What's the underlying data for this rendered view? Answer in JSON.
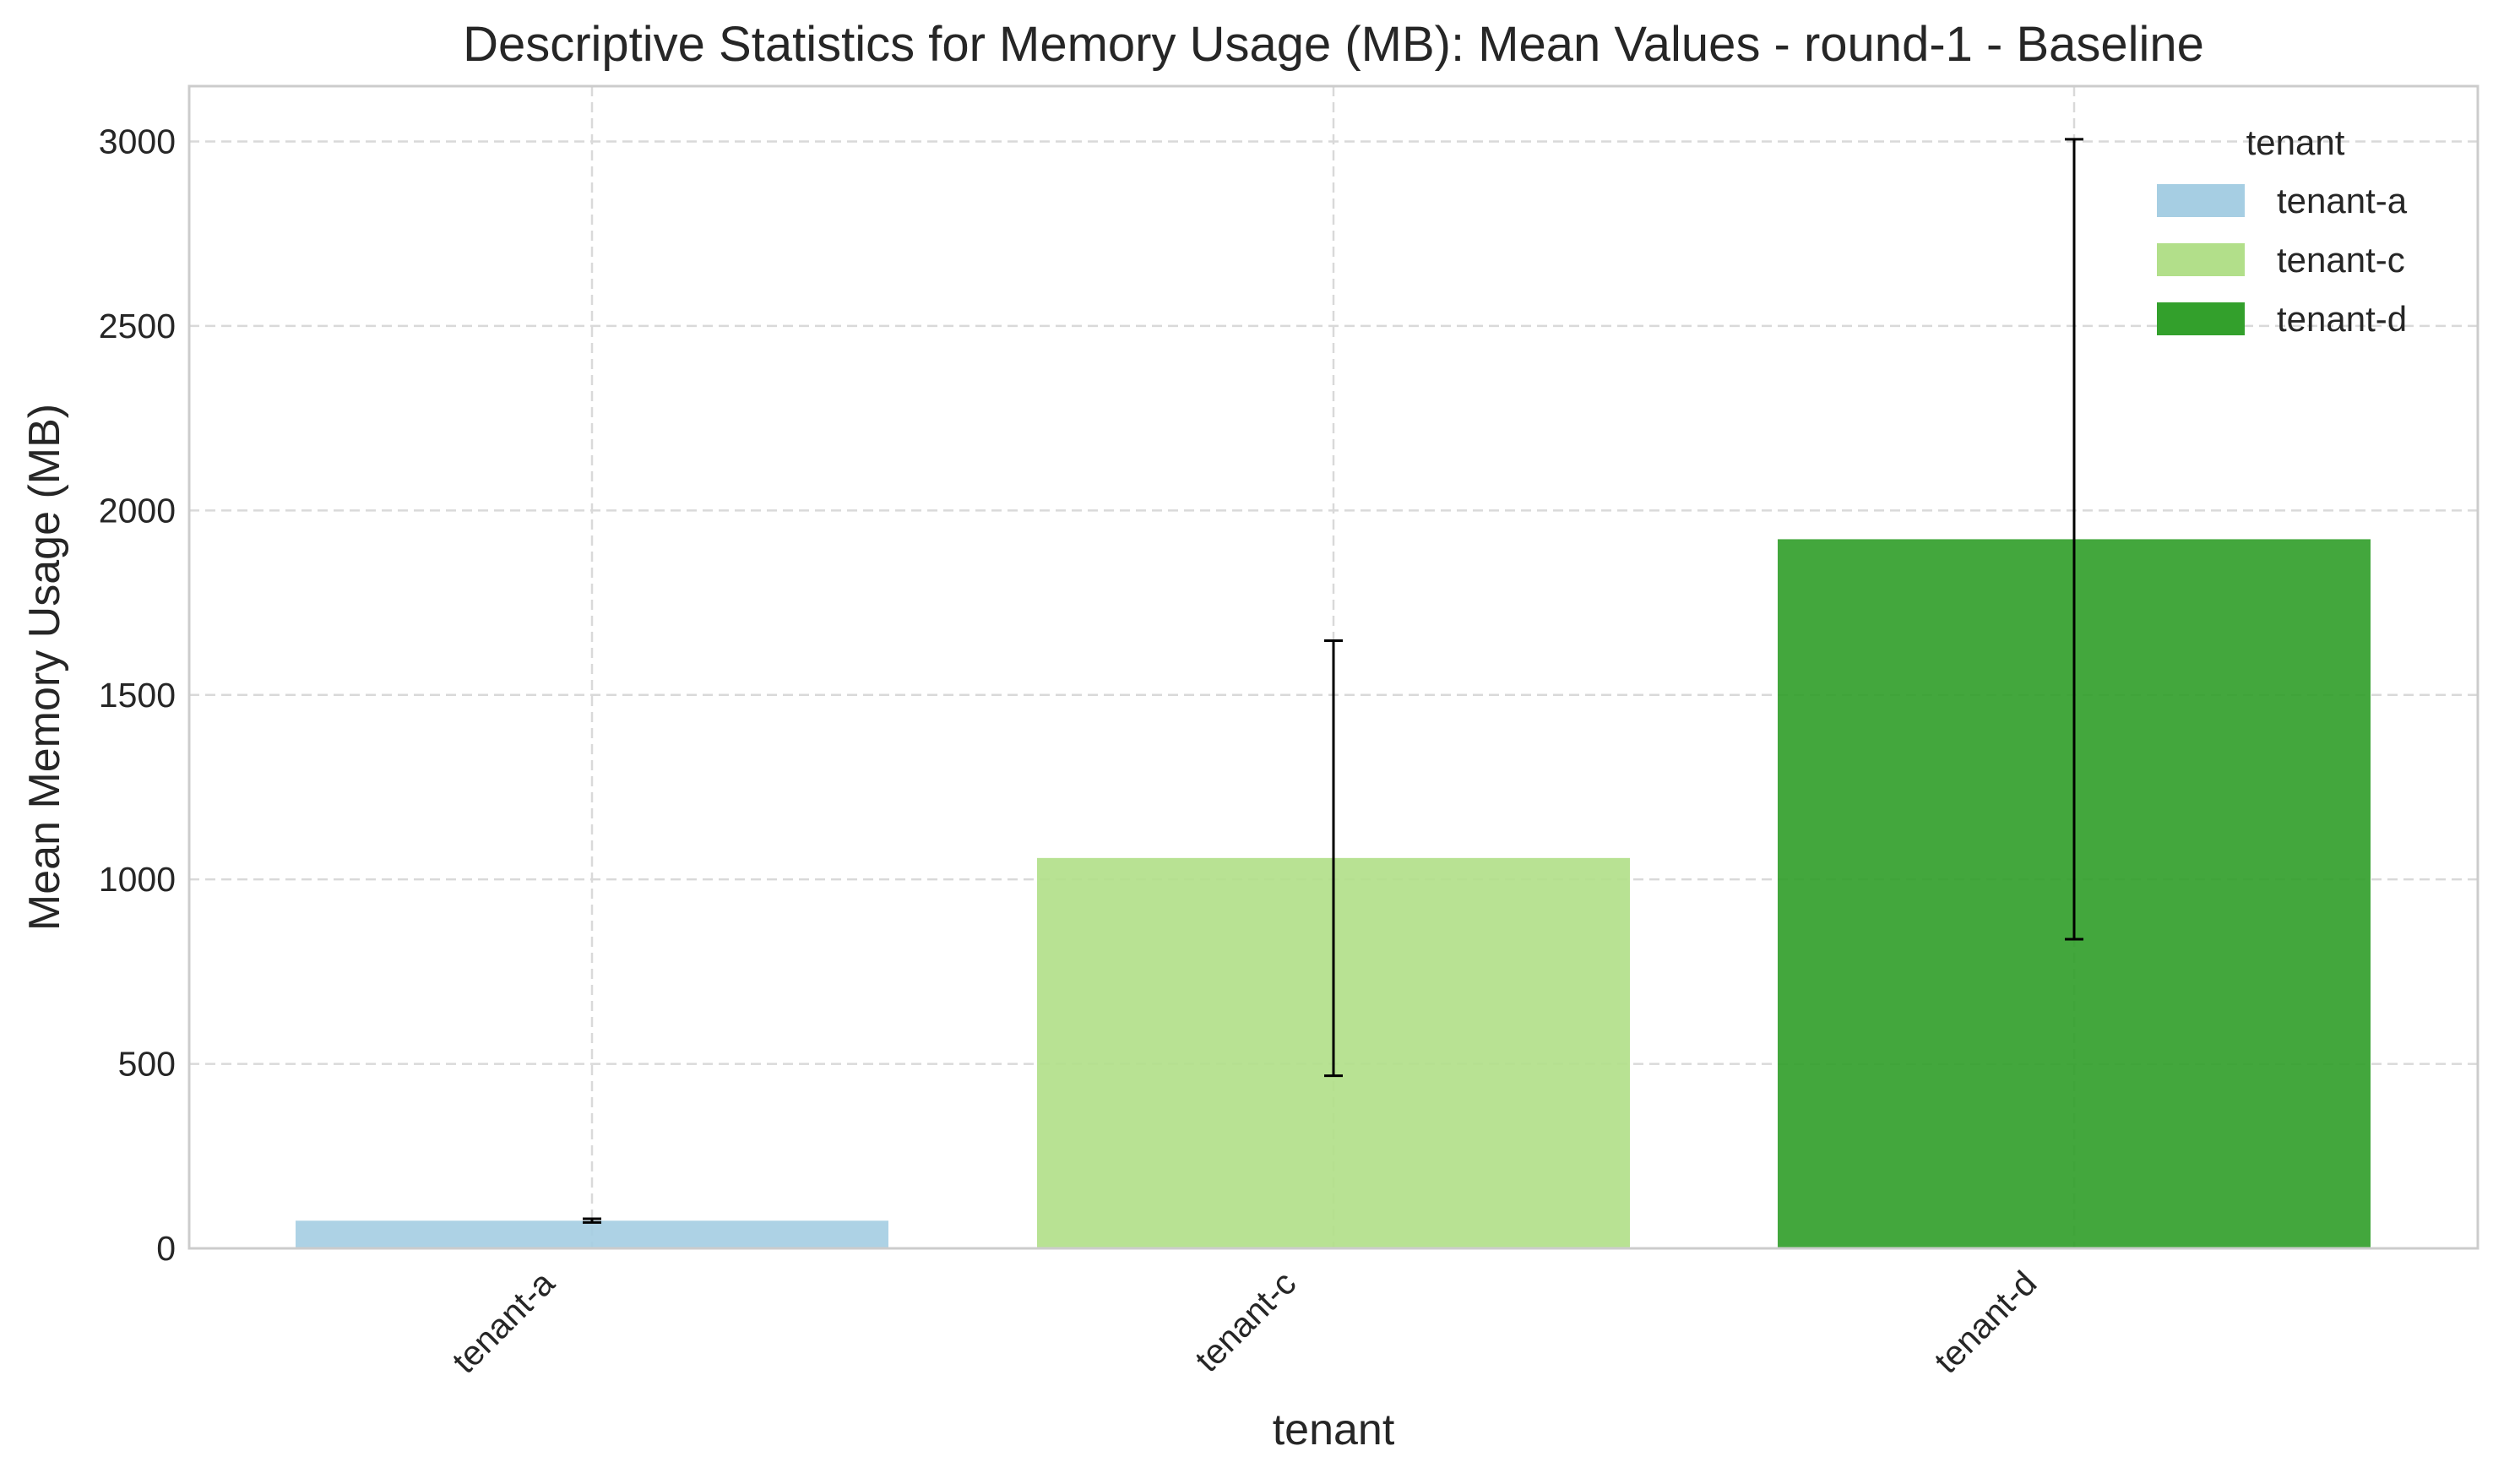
{
  "chart_data": {
    "type": "bar",
    "title": "Descriptive Statistics for Memory Usage (MB): Mean Values - round-1 - Baseline",
    "xlabel": "tenant",
    "ylabel": "Mean Memory Usage (MB)",
    "categories": [
      "tenant-a",
      "tenant-c",
      "tenant-d"
    ],
    "values": [
      75,
      1058,
      1922
    ],
    "error_low": [
      70,
      468,
      838
    ],
    "error_high": [
      80,
      1647,
      3006
    ],
    "colors": [
      "#a6cee3",
      "#b2df8a",
      "#33a02c"
    ],
    "ylim": [
      0,
      3150
    ],
    "yticks": [
      0,
      500,
      1000,
      1500,
      2000,
      2500,
      3000
    ],
    "ytick_labels": [
      "0",
      "500",
      "1000",
      "1500",
      "2000",
      "2500",
      "3000"
    ],
    "grid": true,
    "legend": {
      "title": "tenant",
      "placement": "top-right",
      "entries": [
        "tenant-a",
        "tenant-c",
        "tenant-d"
      ]
    }
  }
}
